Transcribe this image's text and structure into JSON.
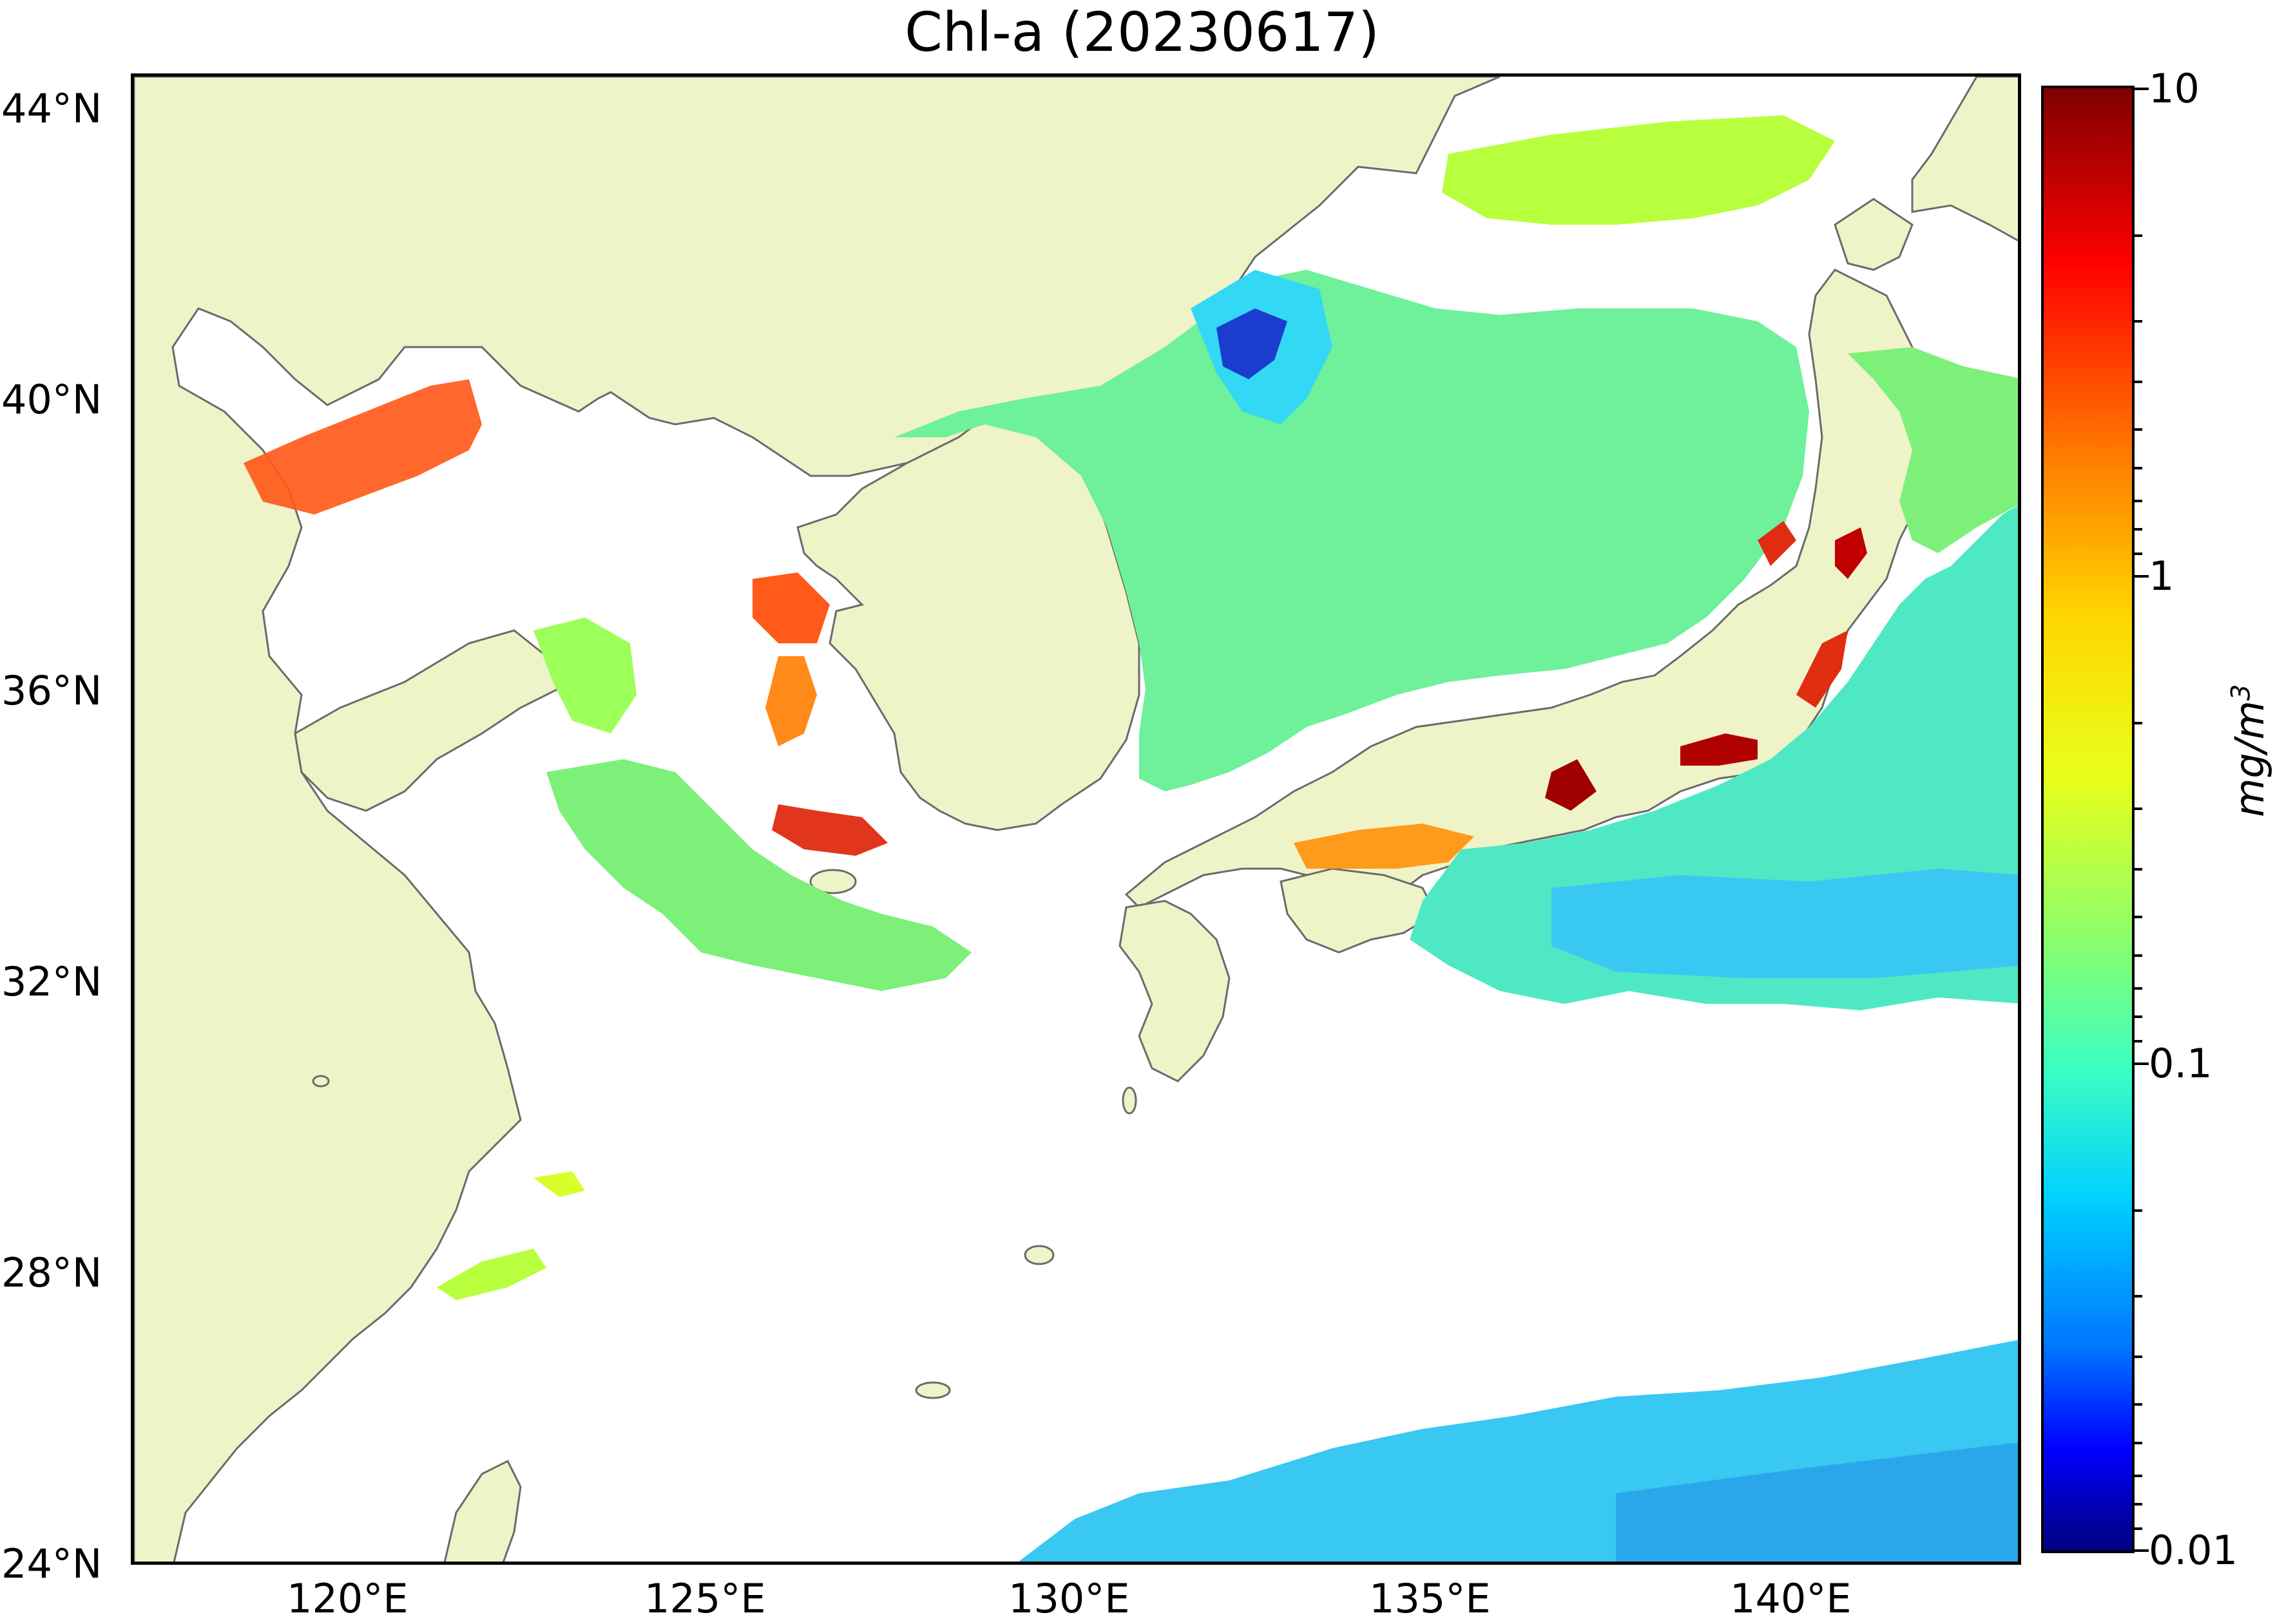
{
  "title": "Chl-a (20230617)",
  "map": {
    "lat_labels": [
      "44°N",
      "40°N",
      "36°N",
      "32°N",
      "28°N",
      "24°N"
    ],
    "lon_labels": [
      "120°E",
      "125°E",
      "130°E",
      "135°E",
      "140°E"
    ],
    "lat_range": [
      24,
      44.5
    ],
    "lon_range": [
      116.7,
      143.0
    ],
    "land_color": "#eff3c8",
    "coast_color": "#6b6b6b",
    "no_data_color": "#ffffff"
  },
  "colorbar": {
    "labels": [
      "10",
      "1",
      "0.1",
      "0.01"
    ],
    "unit_label": "mg/m",
    "unit_superscript": "3",
    "scale": "log",
    "range": [
      0.01,
      10
    ],
    "colormap": "jet"
  }
}
